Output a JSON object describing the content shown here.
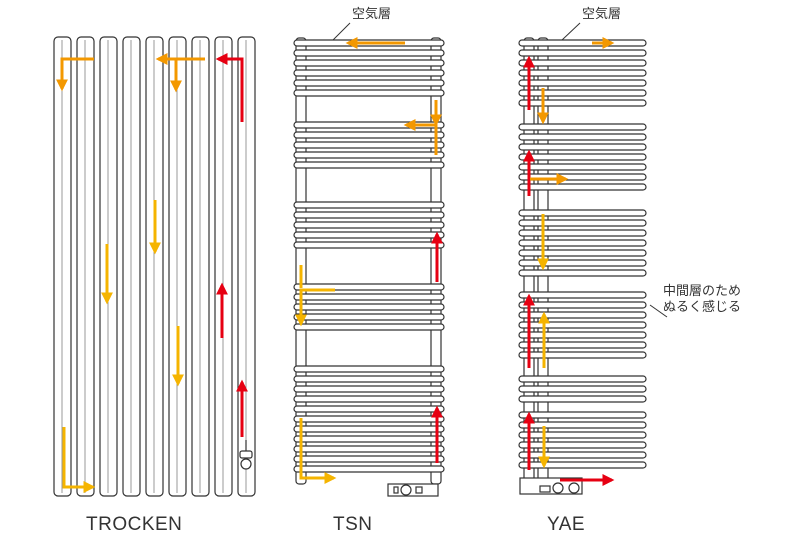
{
  "labels": {
    "trocken": "TROCKEN",
    "tsn": "TSN",
    "yae": "YAE"
  },
  "callouts": {
    "air_layer_tsn": "空気層",
    "air_layer_yae": "空気層",
    "middle_layer_line1": "中間層のため",
    "middle_layer_line2": "ぬるく感じる"
  },
  "colors": {
    "outline": "#333333",
    "hot_flow": "#e60012",
    "warm_flow": "#f39800",
    "cool_flow": "#f5b400"
  }
}
